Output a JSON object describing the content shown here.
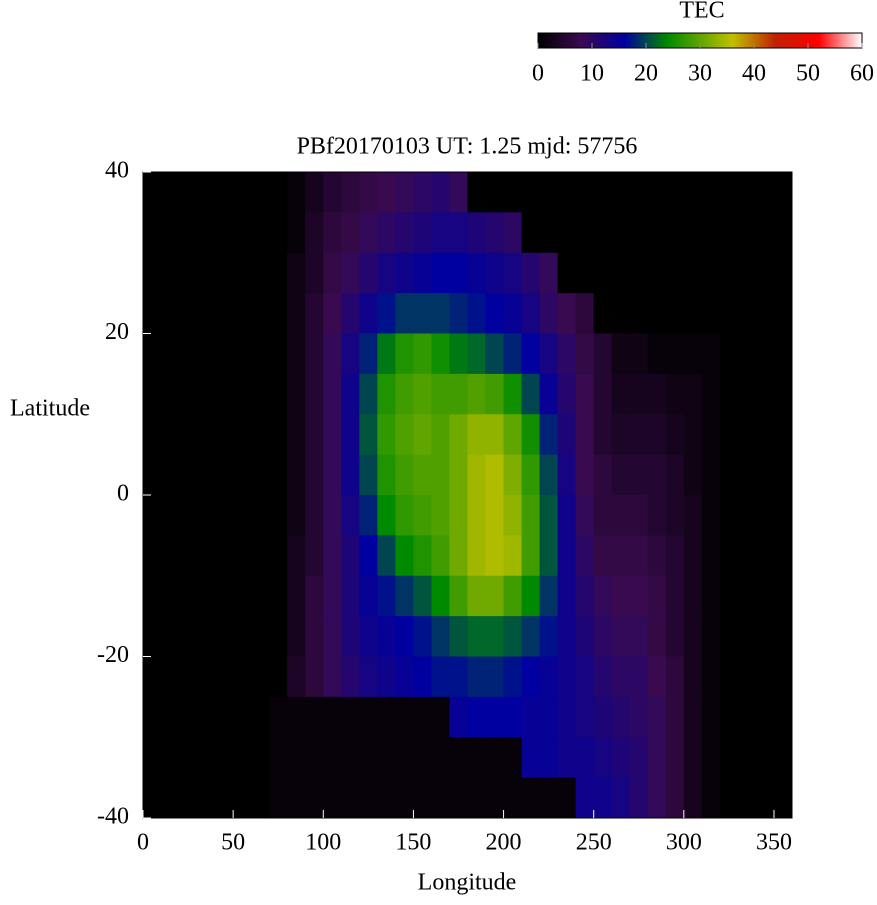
{
  "chart_data": {
    "type": "heatmap",
    "title": "PBf20170103  UT: 1.25  mjd: 57756",
    "x_label": "Longitude",
    "y_label": "Latitude",
    "colorbar_label": "TEC",
    "colorscale": [
      [
        0,
        "#000000"
      ],
      [
        8,
        "#3a0a50"
      ],
      [
        16,
        "#0000a0"
      ],
      [
        24,
        "#008a00"
      ],
      [
        36,
        "#c0c000"
      ],
      [
        44,
        "#c02000"
      ],
      [
        52,
        "#ff0000"
      ],
      [
        60,
        "#ffffff"
      ]
    ],
    "clim": [
      0,
      60
    ],
    "cticks": [
      0,
      10,
      20,
      30,
      40,
      50,
      60
    ],
    "xlim": [
      0,
      360
    ],
    "xticks": [
      0,
      50,
      100,
      150,
      200,
      250,
      300,
      350
    ],
    "ylim": [
      -40,
      40
    ],
    "yticks": [
      -40,
      -20,
      0,
      20,
      40
    ],
    "x": [
      5,
      15,
      25,
      35,
      45,
      55,
      65,
      75,
      85,
      95,
      105,
      115,
      125,
      135,
      145,
      155,
      165,
      175,
      185,
      195,
      205,
      215,
      225,
      235,
      245,
      255,
      265,
      275,
      285,
      295,
      305,
      315,
      325,
      335,
      345,
      355
    ],
    "y": [
      37.5,
      32.5,
      27.5,
      22.5,
      17.5,
      12.5,
      7.5,
      2.5,
      -2.5,
      -7.5,
      -12.5,
      -17.5,
      -22.5,
      -27.5,
      -32.5,
      -37.5
    ],
    "z": [
      [
        0,
        0,
        0,
        0,
        0,
        0,
        0,
        0,
        1,
        3,
        5,
        6,
        7,
        8,
        9,
        10,
        11,
        9,
        0,
        0,
        0,
        0,
        0,
        0,
        0,
        0,
        0,
        0,
        0,
        0,
        0,
        0,
        0,
        0,
        0,
        0
      ],
      [
        0,
        0,
        0,
        0,
        0,
        0,
        0,
        0,
        1,
        4,
        6,
        7,
        9,
        10,
        11,
        12,
        13,
        13,
        12,
        11,
        10,
        0,
        0,
        0,
        0,
        0,
        0,
        0,
        0,
        0,
        0,
        0,
        0,
        0,
        0,
        0
      ],
      [
        0,
        0,
        0,
        0,
        0,
        0,
        0,
        0,
        2,
        4,
        7,
        9,
        11,
        13,
        14,
        15,
        16,
        16,
        15,
        14,
        13,
        11,
        9,
        0,
        0,
        0,
        0,
        0,
        0,
        0,
        0,
        0,
        0,
        0,
        0,
        0
      ],
      [
        0,
        0,
        0,
        0,
        0,
        0,
        0,
        0,
        2,
        5,
        8,
        11,
        14,
        17,
        19,
        19,
        19,
        18,
        17,
        16,
        15,
        13,
        10,
        8,
        6,
        0,
        0,
        0,
        0,
        0,
        0,
        0,
        0,
        0,
        0,
        0
      ],
      [
        0,
        0,
        0,
        0,
        0,
        0,
        0,
        0,
        2,
        5,
        9,
        13,
        18,
        23,
        26,
        27,
        25,
        23,
        22,
        20,
        18,
        16,
        13,
        10,
        7,
        5,
        2,
        2,
        1,
        1,
        1,
        1,
        0,
        0,
        0,
        0
      ],
      [
        0,
        0,
        0,
        0,
        0,
        0,
        0,
        0,
        2,
        5,
        9,
        14,
        20,
        26,
        28,
        29,
        28,
        28,
        29,
        28,
        25,
        20,
        15,
        11,
        8,
        5,
        3,
        3,
        3,
        2,
        2,
        1,
        0,
        0,
        0,
        0
      ],
      [
        0,
        0,
        0,
        0,
        0,
        0,
        0,
        0,
        2,
        5,
        9,
        14,
        21,
        27,
        29,
        30,
        29,
        31,
        33,
        33,
        30,
        25,
        18,
        12,
        8,
        5,
        4,
        4,
        4,
        3,
        2,
        1,
        0,
        0,
        0,
        0
      ],
      [
        0,
        0,
        0,
        0,
        0,
        0,
        0,
        0,
        2,
        5,
        9,
        14,
        20,
        26,
        28,
        29,
        29,
        31,
        34,
        35,
        32,
        27,
        20,
        13,
        8,
        6,
        5,
        5,
        5,
        4,
        2,
        1,
        0,
        0,
        0,
        0
      ],
      [
        0,
        0,
        0,
        0,
        0,
        0,
        0,
        0,
        2,
        5,
        9,
        13,
        18,
        24,
        27,
        28,
        29,
        31,
        34,
        35,
        33,
        28,
        21,
        14,
        9,
        6,
        6,
        6,
        5,
        4,
        3,
        1,
        0,
        0,
        0,
        0
      ],
      [
        0,
        0,
        0,
        0,
        0,
        0,
        0,
        0,
        3,
        5,
        9,
        12,
        16,
        20,
        24,
        26,
        28,
        31,
        34,
        35,
        34,
        28,
        21,
        14,
        10,
        7,
        7,
        7,
        6,
        5,
        3,
        1,
        0,
        0,
        0,
        0
      ],
      [
        0,
        0,
        0,
        0,
        0,
        0,
        0,
        0,
        3,
        6,
        9,
        12,
        15,
        17,
        19,
        21,
        24,
        28,
        31,
        31,
        28,
        24,
        19,
        14,
        11,
        9,
        8,
        8,
        7,
        5,
        3,
        1,
        0,
        0,
        0,
        0
      ],
      [
        0,
        0,
        0,
        0,
        0,
        0,
        0,
        0,
        3,
        6,
        9,
        12,
        14,
        15,
        16,
        17,
        19,
        21,
        22,
        22,
        21,
        19,
        17,
        14,
        12,
        10,
        9,
        9,
        7,
        5,
        3,
        1,
        0,
        0,
        0,
        0
      ],
      [
        0,
        0,
        0,
        0,
        0,
        0,
        0,
        0,
        4,
        6,
        9,
        11,
        13,
        14,
        15,
        16,
        17,
        17,
        18,
        18,
        17,
        16,
        15,
        14,
        13,
        11,
        10,
        10,
        8,
        6,
        3,
        1,
        0,
        0,
        0,
        0
      ],
      [
        0,
        0,
        0,
        0,
        0,
        0,
        0,
        1,
        1,
        1,
        1,
        1,
        1,
        1,
        1,
        1,
        1,
        15,
        16,
        16,
        16,
        15,
        15,
        14,
        13,
        12,
        11,
        10,
        9,
        6,
        3,
        1,
        0,
        0,
        0,
        0
      ],
      [
        0,
        0,
        0,
        0,
        0,
        0,
        0,
        1,
        1,
        1,
        1,
        1,
        1,
        1,
        1,
        1,
        1,
        1,
        1,
        1,
        1,
        15,
        15,
        14,
        14,
        13,
        12,
        11,
        9,
        6,
        3,
        1,
        0,
        0,
        0,
        0
      ],
      [
        0,
        0,
        0,
        0,
        0,
        0,
        0,
        1,
        1,
        1,
        1,
        1,
        1,
        1,
        1,
        1,
        1,
        1,
        1,
        1,
        1,
        1,
        1,
        1,
        14,
        14,
        13,
        11,
        9,
        6,
        3,
        1,
        0,
        0,
        0,
        0
      ]
    ]
  }
}
